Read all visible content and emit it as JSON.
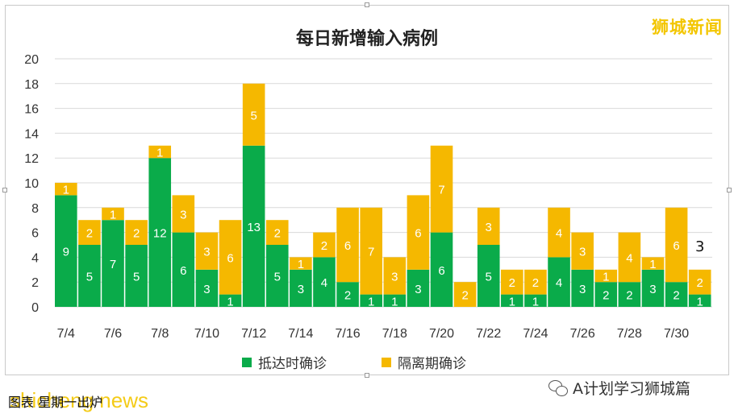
{
  "chart_data": {
    "type": "bar",
    "stacked": true,
    "title": "每日新增输入病例",
    "categories": [
      "7/4",
      "7/5",
      "7/6",
      "7/7",
      "7/8",
      "7/9",
      "7/10",
      "7/11",
      "7/12",
      "7/13",
      "7/14",
      "7/15",
      "7/16",
      "7/17",
      "7/18",
      "7/19",
      "7/20",
      "7/21",
      "7/22",
      "7/23",
      "7/24",
      "7/25",
      "7/26",
      "7/27",
      "7/28",
      "7/29",
      "7/30",
      "7/31"
    ],
    "x_tick_labels": [
      "7/4",
      "",
      "7/6",
      "",
      "7/8",
      "",
      "7/10",
      "",
      "7/12",
      "",
      "7/14",
      "",
      "7/16",
      "",
      "7/18",
      "",
      "7/20",
      "",
      "7/22",
      "",
      "7/24",
      "",
      "7/26",
      "",
      "7/28",
      "",
      "7/30",
      ""
    ],
    "series": [
      {
        "name": "抵达时确诊",
        "color": "#0aab4a",
        "values": [
          9,
          5,
          7,
          5,
          12,
          6,
          3,
          1,
          13,
          5,
          3,
          4,
          2,
          1,
          1,
          3,
          6,
          0,
          5,
          1,
          1,
          4,
          3,
          2,
          2,
          3,
          2,
          1
        ]
      },
      {
        "name": "隔离期确诊",
        "color": "#f5b800",
        "values": [
          1,
          2,
          1,
          2,
          1,
          3,
          3,
          6,
          5,
          2,
          1,
          2,
          6,
          7,
          3,
          6,
          7,
          2,
          3,
          2,
          2,
          4,
          3,
          1,
          4,
          1,
          6,
          2
        ]
      }
    ],
    "ylim": [
      0,
      20
    ],
    "yticks": [
      0,
      2,
      4,
      6,
      8,
      10,
      12,
      14,
      16,
      18,
      20
    ],
    "grid": true,
    "legend_position": "bottom"
  },
  "annotation_text": "3",
  "watermark_top": "狮城新闻",
  "footer_left_text": "图表  星期一出炉",
  "footer_left_logo": "shicheng news",
  "footer_right_text": "A计划学习狮城篇"
}
